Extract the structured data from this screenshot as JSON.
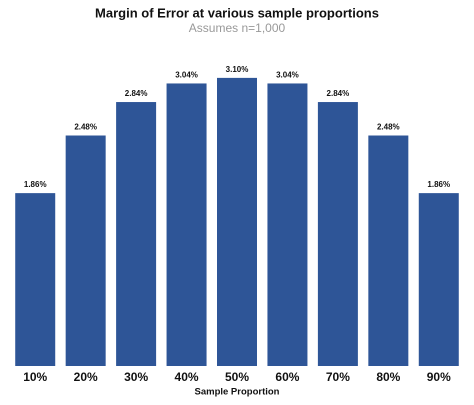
{
  "chart_data": {
    "type": "bar",
    "title": "Margin of Error at various sample proportions",
    "subtitle": "Assumes n=1,000",
    "x_label": "Sample Proportion",
    "categories": [
      "10%",
      "20%",
      "30%",
      "40%",
      "50%",
      "60%",
      "70%",
      "80%",
      "90%"
    ],
    "values": [
      1.86,
      2.48,
      2.84,
      3.04,
      3.1,
      3.04,
      2.84,
      2.48,
      1.86
    ],
    "value_labels": [
      "1.86%",
      "2.48%",
      "2.84%",
      "3.04%",
      "3.10%",
      "3.04%",
      "2.84%",
      "2.48%",
      "1.86%"
    ],
    "color": "#2e5597",
    "ylim": [
      0,
      3.4
    ]
  }
}
